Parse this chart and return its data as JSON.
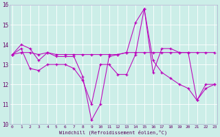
{
  "bg_color": "#cceee8",
  "line_color": "#bb00bb",
  "grid_color": "#ffffff",
  "spine_color": "#aaaacc",
  "tick_color": "#660066",
  "label_color": "#550055",
  "xlim": [
    0,
    23
  ],
  "ylim": [
    10,
    16
  ],
  "yticks": [
    10,
    11,
    12,
    13,
    14,
    15,
    16
  ],
  "xticks": [
    0,
    1,
    2,
    3,
    4,
    5,
    6,
    7,
    8,
    9,
    10,
    11,
    12,
    13,
    14,
    15,
    16,
    17,
    18,
    19,
    20,
    21,
    22,
    23
  ],
  "xlabel": "Windchill (Refroidissement éolien,°C)",
  "series1": [
    13.5,
    13.6,
    13.6,
    13.5,
    13.6,
    13.5,
    13.5,
    13.5,
    13.5,
    13.5,
    13.5,
    13.5,
    13.5,
    13.6,
    13.6,
    13.6,
    13.6,
    13.6,
    13.6,
    13.6,
    13.6,
    13.6,
    13.6,
    13.6
  ],
  "series2": [
    13.5,
    14.0,
    13.8,
    13.2,
    13.6,
    13.4,
    13.4,
    13.4,
    12.4,
    10.2,
    11.0,
    13.4,
    13.5,
    13.6,
    15.1,
    15.8,
    12.6,
    13.8,
    13.8,
    13.6,
    13.6,
    11.2,
    12.0,
    12.0
  ],
  "series3": [
    13.5,
    13.8,
    12.8,
    12.7,
    13.0,
    13.0,
    13.0,
    12.8,
    12.2,
    11.0,
    13.0,
    13.0,
    12.5,
    12.5,
    13.5,
    15.8,
    13.2,
    12.6,
    12.3,
    12.0,
    11.8,
    11.2,
    11.8,
    12.0
  ]
}
